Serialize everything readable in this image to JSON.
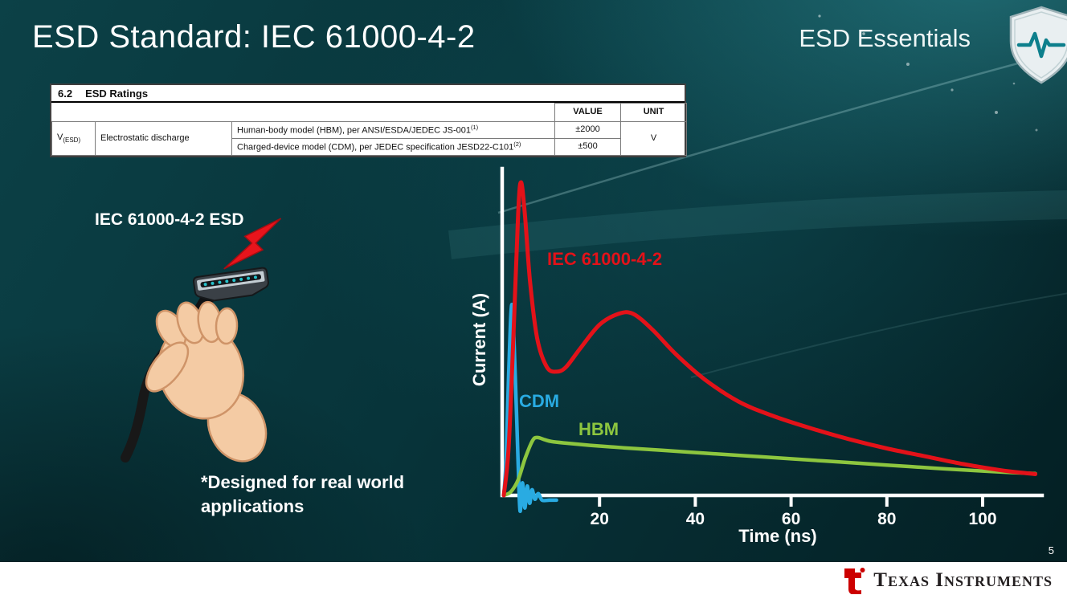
{
  "slide": {
    "title": "ESD Standard: IEC 61000-4-2",
    "brand": "ESD Essentials",
    "illustration_label": "IEC 61000-4-2 ESD",
    "footnote_line1": "*Designed for real world",
    "footnote_line2": "applications",
    "page_number": "5"
  },
  "ratings_table": {
    "section": "6.2",
    "section_title": "ESD Ratings",
    "col_value": "VALUE",
    "col_unit": "UNIT",
    "param_symbol": "V",
    "param_symbol_sub": "(ESD)",
    "param_name": "Electrostatic discharge",
    "rows": [
      {
        "desc": "Human-body model (HBM), per ANSI/ESDA/JEDEC JS-001",
        "sup": "(1)",
        "value": "±2000"
      },
      {
        "desc": "Charged-device model (CDM), per JEDEC specification JESD22-C101",
        "sup": "(2)",
        "value": "±500"
      }
    ],
    "unit": "V"
  },
  "chart_data": {
    "type": "line",
    "title": "",
    "xlabel": "Time (ns)",
    "ylabel": "Current (A)",
    "xlim": [
      0,
      112
    ],
    "ylim": [
      -0.06,
      1.05
    ],
    "x_ticks": [
      20,
      40,
      60,
      80,
      100
    ],
    "y_ticks": [],
    "grid": false,
    "legend_position": "inline-labels",
    "axis_color": "#ffffff",
    "y_scale_note": "no numeric y-axis labels; currents normalized to IEC 61000-4-2 peak = 1.0",
    "series": [
      {
        "name": "IEC 61000-4-2",
        "color": "#e31219",
        "points": [
          [
            0,
            0
          ],
          [
            1,
            0.15
          ],
          [
            2,
            0.5
          ],
          [
            3,
            0.9
          ],
          [
            3.6,
            1.0
          ],
          [
            4.4,
            0.9
          ],
          [
            5.5,
            0.68
          ],
          [
            7,
            0.5
          ],
          [
            9,
            0.41
          ],
          [
            11,
            0.395
          ],
          [
            13,
            0.41
          ],
          [
            16,
            0.47
          ],
          [
            20,
            0.545
          ],
          [
            24,
            0.58
          ],
          [
            27,
            0.58
          ],
          [
            31,
            0.53
          ],
          [
            36,
            0.45
          ],
          [
            42,
            0.37
          ],
          [
            49,
            0.3
          ],
          [
            56,
            0.255
          ],
          [
            64,
            0.215
          ],
          [
            72,
            0.18
          ],
          [
            80,
            0.15
          ],
          [
            88,
            0.125
          ],
          [
            96,
            0.1
          ],
          [
            104,
            0.08
          ],
          [
            111,
            0.068
          ]
        ]
      },
      {
        "name": "CDM",
        "color": "#29abe2",
        "points": [
          [
            0,
            0
          ],
          [
            0.5,
            0.12
          ],
          [
            1,
            0.38
          ],
          [
            1.7,
            0.61
          ],
          [
            2.4,
            0.38
          ],
          [
            3,
            0.1
          ],
          [
            3.4,
            -0.05
          ],
          [
            3.9,
            0.04
          ],
          [
            4.4,
            -0.04
          ],
          [
            4.9,
            0.03
          ],
          [
            5.4,
            -0.025
          ],
          [
            5.9,
            0.018
          ],
          [
            6.5,
            -0.012
          ],
          [
            7.2,
            0.006
          ],
          [
            8,
            -0.015
          ],
          [
            9.5,
            -0.015
          ],
          [
            11,
            -0.015
          ]
        ]
      },
      {
        "name": "HBM",
        "color": "#8dc63f",
        "points": [
          [
            0,
            0
          ],
          [
            1.5,
            0.012
          ],
          [
            3,
            0.05
          ],
          [
            4.5,
            0.12
          ],
          [
            6,
            0.175
          ],
          [
            7,
            0.185
          ],
          [
            8.5,
            0.178
          ],
          [
            10,
            0.172
          ],
          [
            13,
            0.167
          ],
          [
            18,
            0.16
          ],
          [
            25,
            0.152
          ],
          [
            33,
            0.144
          ],
          [
            42,
            0.135
          ],
          [
            51,
            0.126
          ],
          [
            60,
            0.117
          ],
          [
            70,
            0.107
          ],
          [
            80,
            0.097
          ],
          [
            90,
            0.087
          ],
          [
            100,
            0.078
          ],
          [
            106,
            0.073
          ],
          [
            111,
            0.07
          ]
        ]
      }
    ]
  },
  "footer": {
    "logo_text": "Texas Instruments"
  },
  "colors": {
    "background_teal": "#0b3f45",
    "accent_red": "#e31219",
    "accent_cyan": "#29abe2",
    "accent_green": "#8dc63f",
    "shield_pulse": "#0d7f8c"
  }
}
